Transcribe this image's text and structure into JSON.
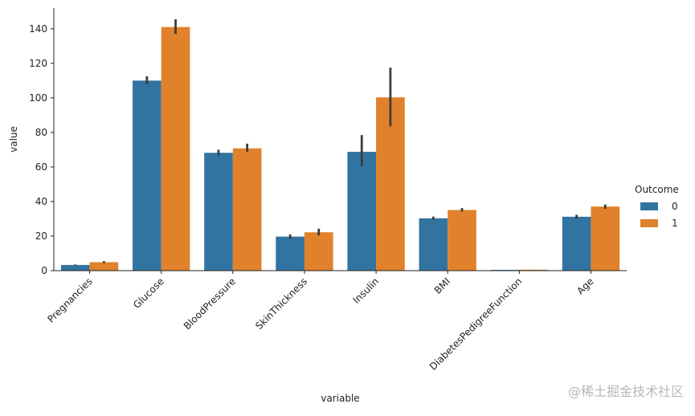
{
  "chart_data": {
    "type": "bar",
    "title": "",
    "xlabel": "variable",
    "ylabel": "value",
    "ylim": [
      0,
      152
    ],
    "yticks": [
      0,
      20,
      40,
      60,
      80,
      100,
      120,
      140
    ],
    "categories": [
      "Pregnancies",
      "Glucose",
      "BloodPressure",
      "SkinThickness",
      "Insulin",
      "BMI",
      "DiabetesPedigreeFunction",
      "Age"
    ],
    "legend": {
      "title": "Outcome",
      "position": "right"
    },
    "series": [
      {
        "name": "0",
        "color": "#3274a1",
        "values": [
          3.3,
          110,
          68.2,
          19.7,
          68.8,
          30.3,
          0.43,
          31.2
        ],
        "ci_low": [
          3.0,
          108,
          66.5,
          18.5,
          60.5,
          29.5,
          0.4,
          30.1
        ],
        "ci_high": [
          3.6,
          112.5,
          70.0,
          21.0,
          78.5,
          31.3,
          0.46,
          32.3
        ]
      },
      {
        "name": "1",
        "color": "#e1812c",
        "values": [
          4.9,
          141,
          70.8,
          22.2,
          100.3,
          35.1,
          0.55,
          37.1
        ],
        "ci_low": [
          4.4,
          137,
          68.8,
          20.4,
          83.5,
          34.2,
          0.5,
          35.8
        ],
        "ci_high": [
          5.5,
          145.5,
          73.5,
          24.3,
          117.5,
          36.2,
          0.6,
          38.3
        ]
      }
    ],
    "error_bar_color": "#3d3d3d",
    "grid": false
  },
  "watermark": "@稀土掘金技术社区"
}
